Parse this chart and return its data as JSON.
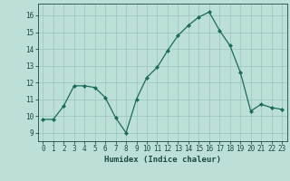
{
  "x": [
    0,
    1,
    2,
    3,
    4,
    5,
    6,
    7,
    8,
    9,
    10,
    11,
    12,
    13,
    14,
    15,
    16,
    17,
    18,
    19,
    20,
    21,
    22,
    23
  ],
  "y": [
    9.8,
    9.8,
    10.6,
    11.8,
    11.8,
    11.7,
    11.1,
    9.9,
    9.0,
    11.0,
    12.3,
    12.9,
    13.9,
    14.8,
    15.4,
    15.9,
    16.2,
    15.1,
    14.2,
    12.6,
    10.3,
    10.7,
    10.5,
    10.4
  ],
  "line_color": "#1a6b5a",
  "marker": "D",
  "marker_size": 2.0,
  "bg_color": "#bce0d8",
  "grid_color": "#99c4be",
  "xlabel": "Humidex (Indice chaleur)",
  "xlim": [
    -0.5,
    23.5
  ],
  "ylim": [
    8.5,
    16.7
  ],
  "yticks": [
    9,
    10,
    11,
    12,
    13,
    14,
    15,
    16
  ],
  "xticks": [
    0,
    1,
    2,
    3,
    4,
    5,
    6,
    7,
    8,
    9,
    10,
    11,
    12,
    13,
    14,
    15,
    16,
    17,
    18,
    19,
    20,
    21,
    22,
    23
  ],
  "xtick_labels": [
    "0",
    "1",
    "2",
    "3",
    "4",
    "5",
    "6",
    "7",
    "8",
    "9",
    "10",
    "11",
    "12",
    "13",
    "14",
    "15",
    "16",
    "17",
    "18",
    "19",
    "20",
    "21",
    "22",
    "23"
  ],
  "font_color": "#1a4a42",
  "label_fontsize": 6.5,
  "tick_fontsize": 5.5
}
